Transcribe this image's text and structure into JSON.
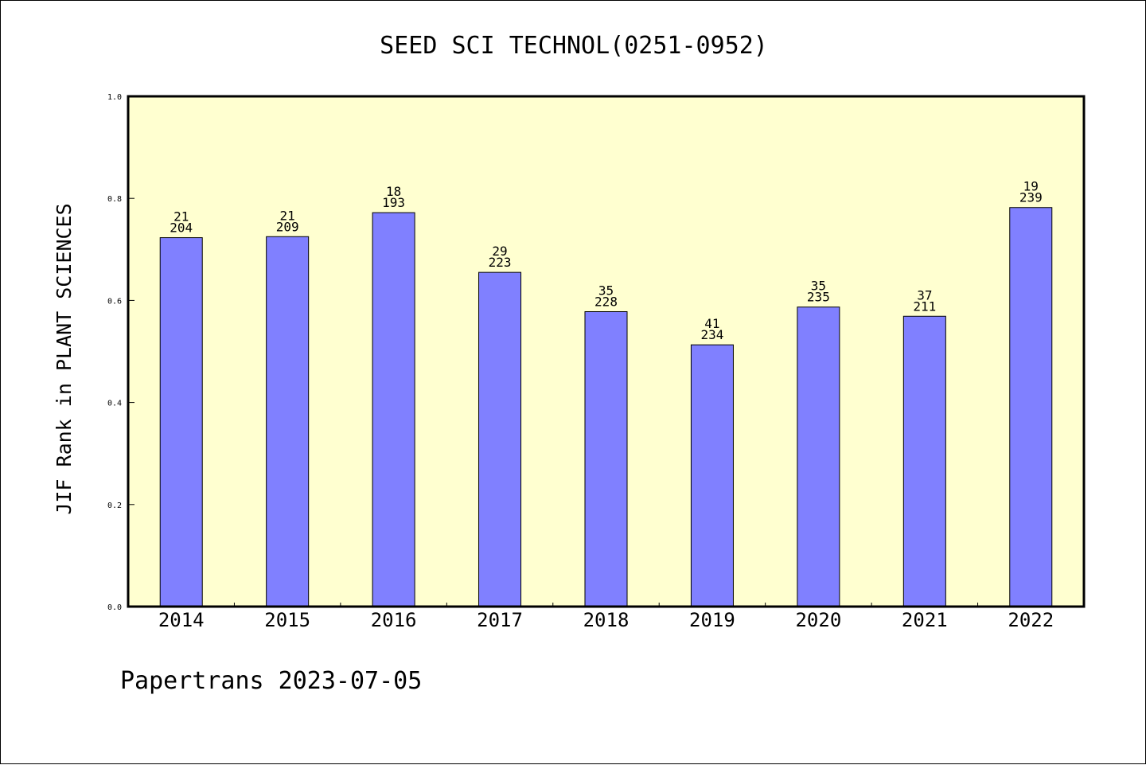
{
  "chart_data": {
    "type": "bar",
    "title": "SEED SCI TECHNOL(0251-0952)",
    "ylabel": "JIF Rank in PLANT SCIENCES",
    "xlabel": "",
    "ylim": [
      0,
      1.0
    ],
    "yticks": [
      "0.0",
      "0.2",
      "0.4",
      "0.6",
      "0.8",
      "1.0"
    ],
    "ytick_values": [
      0.0,
      0.2,
      0.4,
      0.6,
      0.8,
      1.0
    ],
    "categories": [
      "2014",
      "2015",
      "2016",
      "2017",
      "2018",
      "2019",
      "2020",
      "2021",
      "2022"
    ],
    "values": [
      0.723,
      0.725,
      0.772,
      0.655,
      0.578,
      0.513,
      0.587,
      0.569,
      0.782
    ],
    "ranks": [
      "21",
      "21",
      "18",
      "29",
      "35",
      "41",
      "35",
      "37",
      "19"
    ],
    "totals": [
      "204",
      "209",
      "193",
      "223",
      "228",
      "234",
      "235",
      "211",
      "239"
    ],
    "colors": {
      "plot_bg": "#ffffd0",
      "bar": "#8080ff",
      "bar_edge": "#000000"
    },
    "grid": false,
    "legend": "none"
  },
  "footer": {
    "text": "Papertrans 2023-07-05"
  }
}
